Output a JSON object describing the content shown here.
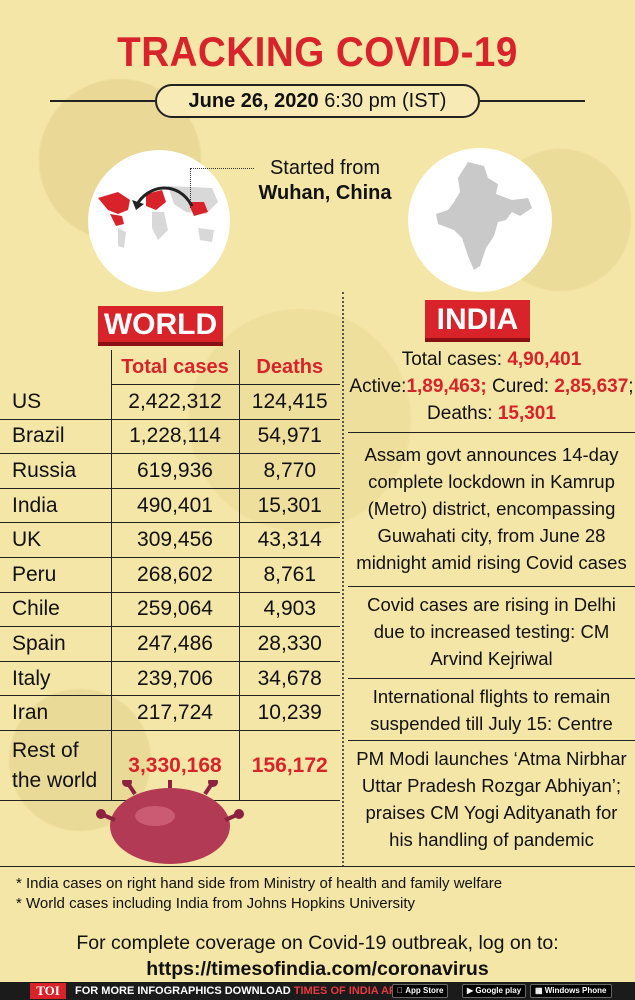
{
  "title": "TRACKING COVID-19",
  "date": {
    "date": "June 26, 2020",
    "time": "6:30 pm (IST)"
  },
  "origin": {
    "line1": "Started from",
    "line2": "Wuhan, China"
  },
  "world": {
    "heading": "WORLD",
    "col_total": "Total cases",
    "col_deaths": "Deaths",
    "rows": [
      {
        "country": "US",
        "total": "2,422,312",
        "deaths": "124,415"
      },
      {
        "country": "Brazil",
        "total": "1,228,114",
        "deaths": "54,971"
      },
      {
        "country": "Russia",
        "total": "619,936",
        "deaths": "8,770"
      },
      {
        "country": "India",
        "total": "490,401",
        "deaths": "15,301"
      },
      {
        "country": "UK",
        "total": "309,456",
        "deaths": "43,314"
      },
      {
        "country": "Peru",
        "total": "268,602",
        "deaths": "8,761"
      },
      {
        "country": "Chile",
        "total": "259,064",
        "deaths": "4,903"
      },
      {
        "country": "Spain",
        "total": "247,486",
        "deaths": "28,330"
      },
      {
        "country": "Italy",
        "total": "239,706",
        "deaths": "34,678"
      },
      {
        "country": "Iran",
        "total": "217,724",
        "deaths": "10,239"
      }
    ],
    "rest": {
      "line1": "Rest of",
      "line2": "the world",
      "total": "3,330,168",
      "deaths": "156,172"
    }
  },
  "india": {
    "heading": "INDIA",
    "total_label": "Total cases: ",
    "total_value": "4,90,401",
    "active_label": "Active:",
    "active_value": "1,89,463;",
    "cured_label": " Cured: ",
    "cured_value": "2,85,637",
    "cured_suffix": ";",
    "deaths_label": "Deaths: ",
    "deaths_value": "15,301",
    "news": [
      "Assam govt announces 14-day complete lockdown in Kamrup (Metro) district, encompassing Guwahati city, from June 28 midnight amid rising Covid cases",
      "Covid cases are rising in Delhi due to increased testing: CM Arvind Kejriwal",
      "International flights to remain suspended till July 15: Centre",
      "PM Modi launches ‘Atma Nirbhar Uttar Pradesh Rozgar Abhiyan’; praises CM Yogi Adityanath for his handling of pandemic"
    ]
  },
  "notes": [
    "* India cases on right hand side from Ministry of health and family welfare",
    "* World cases including India from Johns Hopkins University"
  ],
  "coverage": {
    "line1": "For complete coverage on Covid-19 outbreak, log on to:",
    "url": "https://timesofindia.com/coronavirus"
  },
  "footer": {
    "logo": "TOI",
    "text": "FOR MORE  INFOGRAPHICS DOWNLOAD ",
    "app": "TIMES OF INDIA APP",
    "app_store": "App Store",
    "google_play": "Google play",
    "windows_phone": "Windows Phone"
  }
}
